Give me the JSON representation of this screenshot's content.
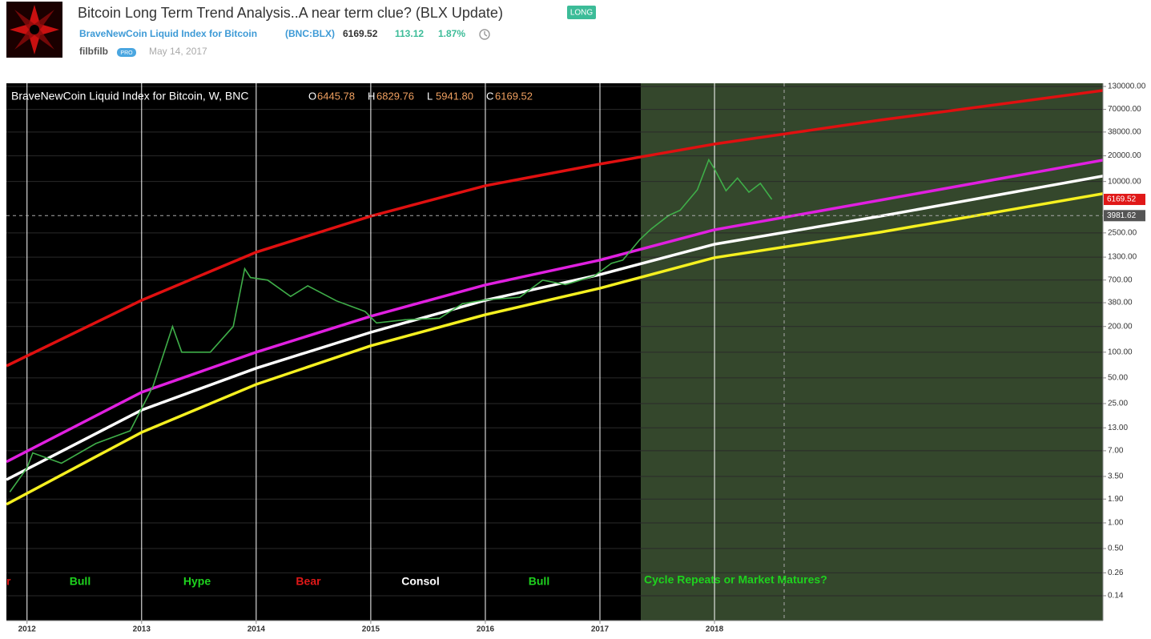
{
  "header": {
    "title": "Bitcoin Long Term Trend Analysis..A near term clue? (BLX Update)",
    "badge": "LONG",
    "symbol_name": "BraveNewCoin Liquid Index for Bitcoin",
    "symbol_code": "(BNC:BLX)",
    "price": "6169.52",
    "change": "113.12",
    "change_percent": "1.87%",
    "author": "filbfilb",
    "author_badge": "PRO",
    "date": "May 14, 2017"
  },
  "chart_data": {
    "type": "line",
    "legend_title": "BraveNewCoin Liquid Index for Bitcoin, W, BNC",
    "ohlc": [
      {
        "key": "O",
        "value": "6445.78"
      },
      {
        "key": "H",
        "value": "6829.76"
      },
      {
        "key": "L",
        "value": "5941.80"
      },
      {
        "key": "C",
        "value": "6169.52"
      }
    ],
    "log_scale": true,
    "xlim": [
      2011.82,
      2021.39
    ],
    "xticks": [
      2012,
      2013,
      2014,
      2015,
      2016,
      2017,
      2018
    ],
    "ylim": [
      0.0716,
      141600
    ],
    "yticks": [
      {
        "value": 130000,
        "label": "130000.00"
      },
      {
        "value": 70000,
        "label": "70000.00"
      },
      {
        "value": 38000,
        "label": "38000.00"
      },
      {
        "value": 20000,
        "label": "20000.00"
      },
      {
        "value": 10000,
        "label": "10000.00"
      },
      {
        "value": 2500,
        "label": "2500.00"
      },
      {
        "value": 1300,
        "label": "1300.00"
      },
      {
        "value": 700,
        "label": "700.00"
      },
      {
        "value": 380,
        "label": "380.00"
      },
      {
        "value": 200,
        "label": "200.00"
      },
      {
        "value": 100,
        "label": "100.00"
      },
      {
        "value": 50,
        "label": "50.00"
      },
      {
        "value": 25,
        "label": "25.00"
      },
      {
        "value": 13,
        "label": "13.00"
      },
      {
        "value": 7,
        "label": "7.00"
      },
      {
        "value": 3.5,
        "label": "3.50"
      },
      {
        "value": 1.9,
        "label": "1.90"
      },
      {
        "value": 1,
        "label": "1.00"
      },
      {
        "value": 0.5,
        "label": "0.50"
      },
      {
        "value": 0.26,
        "label": "0.26"
      },
      {
        "value": 0.14,
        "label": "0.14"
      }
    ],
    "series": [
      {
        "color": "#3fae49",
        "x": [
          2011.85,
          2012.0,
          2012.05,
          2012.3,
          2012.6,
          2012.9,
          2013.1,
          2013.27,
          2013.35,
          2013.6,
          2013.8,
          2013.9,
          2013.95,
          2014.1,
          2014.3,
          2014.45,
          2014.7,
          2014.95,
          2015.05,
          2015.3,
          2015.6,
          2015.8,
          2016.0,
          2016.3,
          2016.5,
          2016.7,
          2016.95,
          2017.1,
          2017.2,
          2017.35,
          2017.45,
          2017.6,
          2017.7,
          2017.85,
          2017.95,
          2018.0,
          2018.1,
          2018.2,
          2018.3,
          2018.4,
          2018.5
        ],
        "values": [
          2.3,
          4.4,
          6.6,
          5,
          8.5,
          12,
          40,
          200,
          100,
          100,
          200,
          950,
          750,
          700,
          450,
          600,
          400,
          300,
          220,
          240,
          250,
          370,
          410,
          440,
          700,
          620,
          780,
          1100,
          1200,
          2100,
          2800,
          4000,
          4600,
          8000,
          18000,
          14000,
          7800,
          11000,
          7500,
          9500,
          6169.52
        ]
      },
      {
        "color": "#e01010",
        "x": [
          2011.82,
          2013,
          2014,
          2015,
          2016,
          2017,
          2018,
          2019.45,
          2021.39
        ],
        "values": [
          69,
          406,
          1486,
          3930,
          8930,
          16000,
          27500,
          52500,
          116700
        ]
      },
      {
        "color": "#e020e0",
        "x": [
          2011.82,
          2013,
          2014,
          2015,
          2016,
          2017,
          2018,
          2019.45,
          2021.39
        ],
        "values": [
          5.2,
          34,
          100,
          264,
          614,
          1200,
          2720,
          6050,
          17800
        ]
      },
      {
        "color": "#ffffff",
        "x": [
          2011.82,
          2013,
          2014,
          2015,
          2016,
          2017,
          2018,
          2019.45,
          2021.39
        ],
        "values": [
          3.2,
          21,
          65,
          171,
          406,
          811,
          1840,
          3930,
          11600
        ]
      },
      {
        "color": "#f5f020",
        "x": [
          2011.82,
          2013,
          2014,
          2015,
          2016,
          2017,
          2018,
          2019.45,
          2021.39
        ],
        "values": [
          1.65,
          11.5,
          42,
          119,
          275,
          562,
          1280,
          2550,
          7190
        ]
      }
    ],
    "price_markers": [
      {
        "value": 6169.52,
        "color": "#e01818"
      },
      {
        "value": 3981.62,
        "color": "#555555"
      }
    ],
    "annotations": [
      {
        "text": "r",
        "color": "#e01818"
      },
      {
        "text": "Bull",
        "color": "#1ed21e"
      },
      {
        "text": "Hype",
        "color": "#1ed21e"
      },
      {
        "text": "Bear",
        "color": "#e01818"
      },
      {
        "text": "Consol",
        "color": "#ffffff"
      },
      {
        "text": "Bull",
        "color": "#1ed21e"
      },
      {
        "text": "Cycle Repeats or Market Matures?",
        "color": "#1ed21e"
      }
    ]
  }
}
